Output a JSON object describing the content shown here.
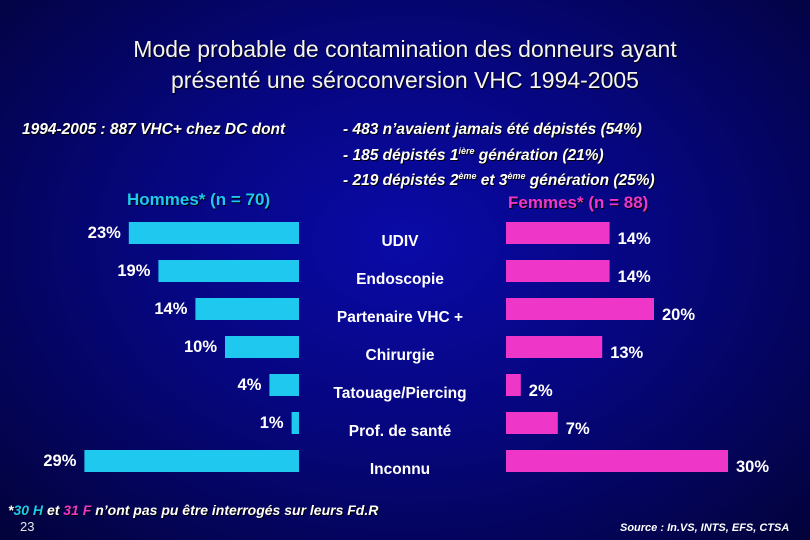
{
  "title_line1": "Mode probable de contamination des donneurs ayant",
  "title_line2": "présenté une séroconversion VHC 1994-2005",
  "intro": {
    "lead": "1994-2005 : 887 VHC+ chez DC  dont",
    "line1": "- 483 n’avaient jamais été dépistés (54%)",
    "line2_pre": "- 185 dépistés 1",
    "line2_sup": "ière",
    "line2_post": " génération (21%)",
    "line3_pre": "- 219 dépistés 2",
    "line3_sup1": "ème",
    "line3_mid": " et 3",
    "line3_sup2": "ème",
    "line3_post": " génération (25%)"
  },
  "colors": {
    "men": "#1ec8ee",
    "women": "#ee37c8"
  },
  "chart_data": {
    "type": "bar",
    "orientation": "horizontal-butterfly",
    "categories": [
      "UDIV",
      "Endoscopie",
      "Partenaire VHC +",
      "Chirurgie",
      "Tatouage/Piercing",
      "Prof. de santé",
      "Inconnu"
    ],
    "series": [
      {
        "name": "Hommes* (n = 70)",
        "values": [
          23,
          19,
          14,
          10,
          4,
          1,
          29
        ],
        "labels": [
          "23%",
          "19%",
          "14%",
          "10%",
          "4%",
          "1%",
          "29%"
        ]
      },
      {
        "name": "Femmes* (n = 88)",
        "values": [
          14,
          14,
          20,
          13,
          2,
          7,
          30
        ],
        "labels": [
          "14%",
          "14%",
          "20%",
          "13%",
          "2%",
          "7%",
          "30%"
        ]
      }
    ],
    "unit": "%"
  },
  "footnote": {
    "star": "*",
    "h_num": "30",
    "h_letter": "H",
    "et": "et",
    "f_num": "31",
    "f_letter": "F",
    "rest": "n’ont pas pu être interrogés sur leurs Fd.R"
  },
  "page_number": "23",
  "source": "Source : In.VS, INTS, EFS, CTSA"
}
